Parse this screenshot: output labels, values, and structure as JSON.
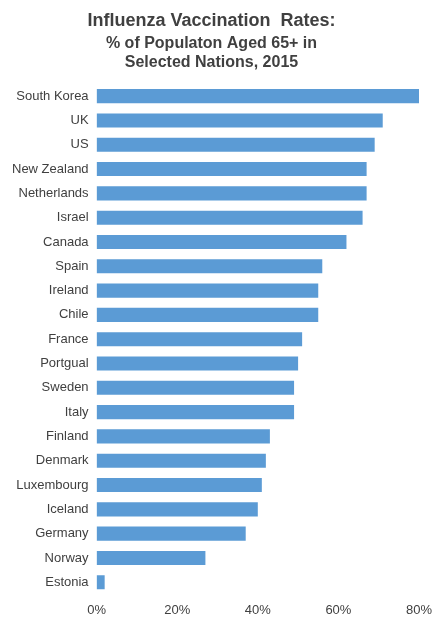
{
  "chart_data": {
    "type": "bar",
    "orientation": "horizontal",
    "title": "Influenza Vaccination  Rates:",
    "subtitle": [
      "% of Populaton Aged 65+ in",
      "Selected Nations, 2015"
    ],
    "categories": [
      "South Korea",
      "UK",
      "US",
      "New Zealand",
      "Netherlands",
      "Israel",
      "Canada",
      "Spain",
      "Ireland",
      "Chile",
      "France",
      "Portgual",
      "Sweden",
      "Italy",
      "Finland",
      "Denmark",
      "Luxembourg",
      "Iceland",
      "Germany",
      "Norway",
      "Estonia"
    ],
    "values": [
      80,
      71,
      69,
      67,
      67,
      66,
      62,
      56,
      55,
      55,
      51,
      50,
      49,
      49,
      43,
      42,
      41,
      40,
      37,
      27,
      2
    ],
    "color": "#5b9bd5",
    "xlim": [
      0,
      80
    ],
    "xticks": [
      {
        "value": 0,
        "label": "0%"
      },
      {
        "value": 20,
        "label": "20%"
      },
      {
        "value": 40,
        "label": "40%"
      },
      {
        "value": 60,
        "label": "60%"
      },
      {
        "value": 80,
        "label": "80%"
      }
    ],
    "grid": false
  }
}
